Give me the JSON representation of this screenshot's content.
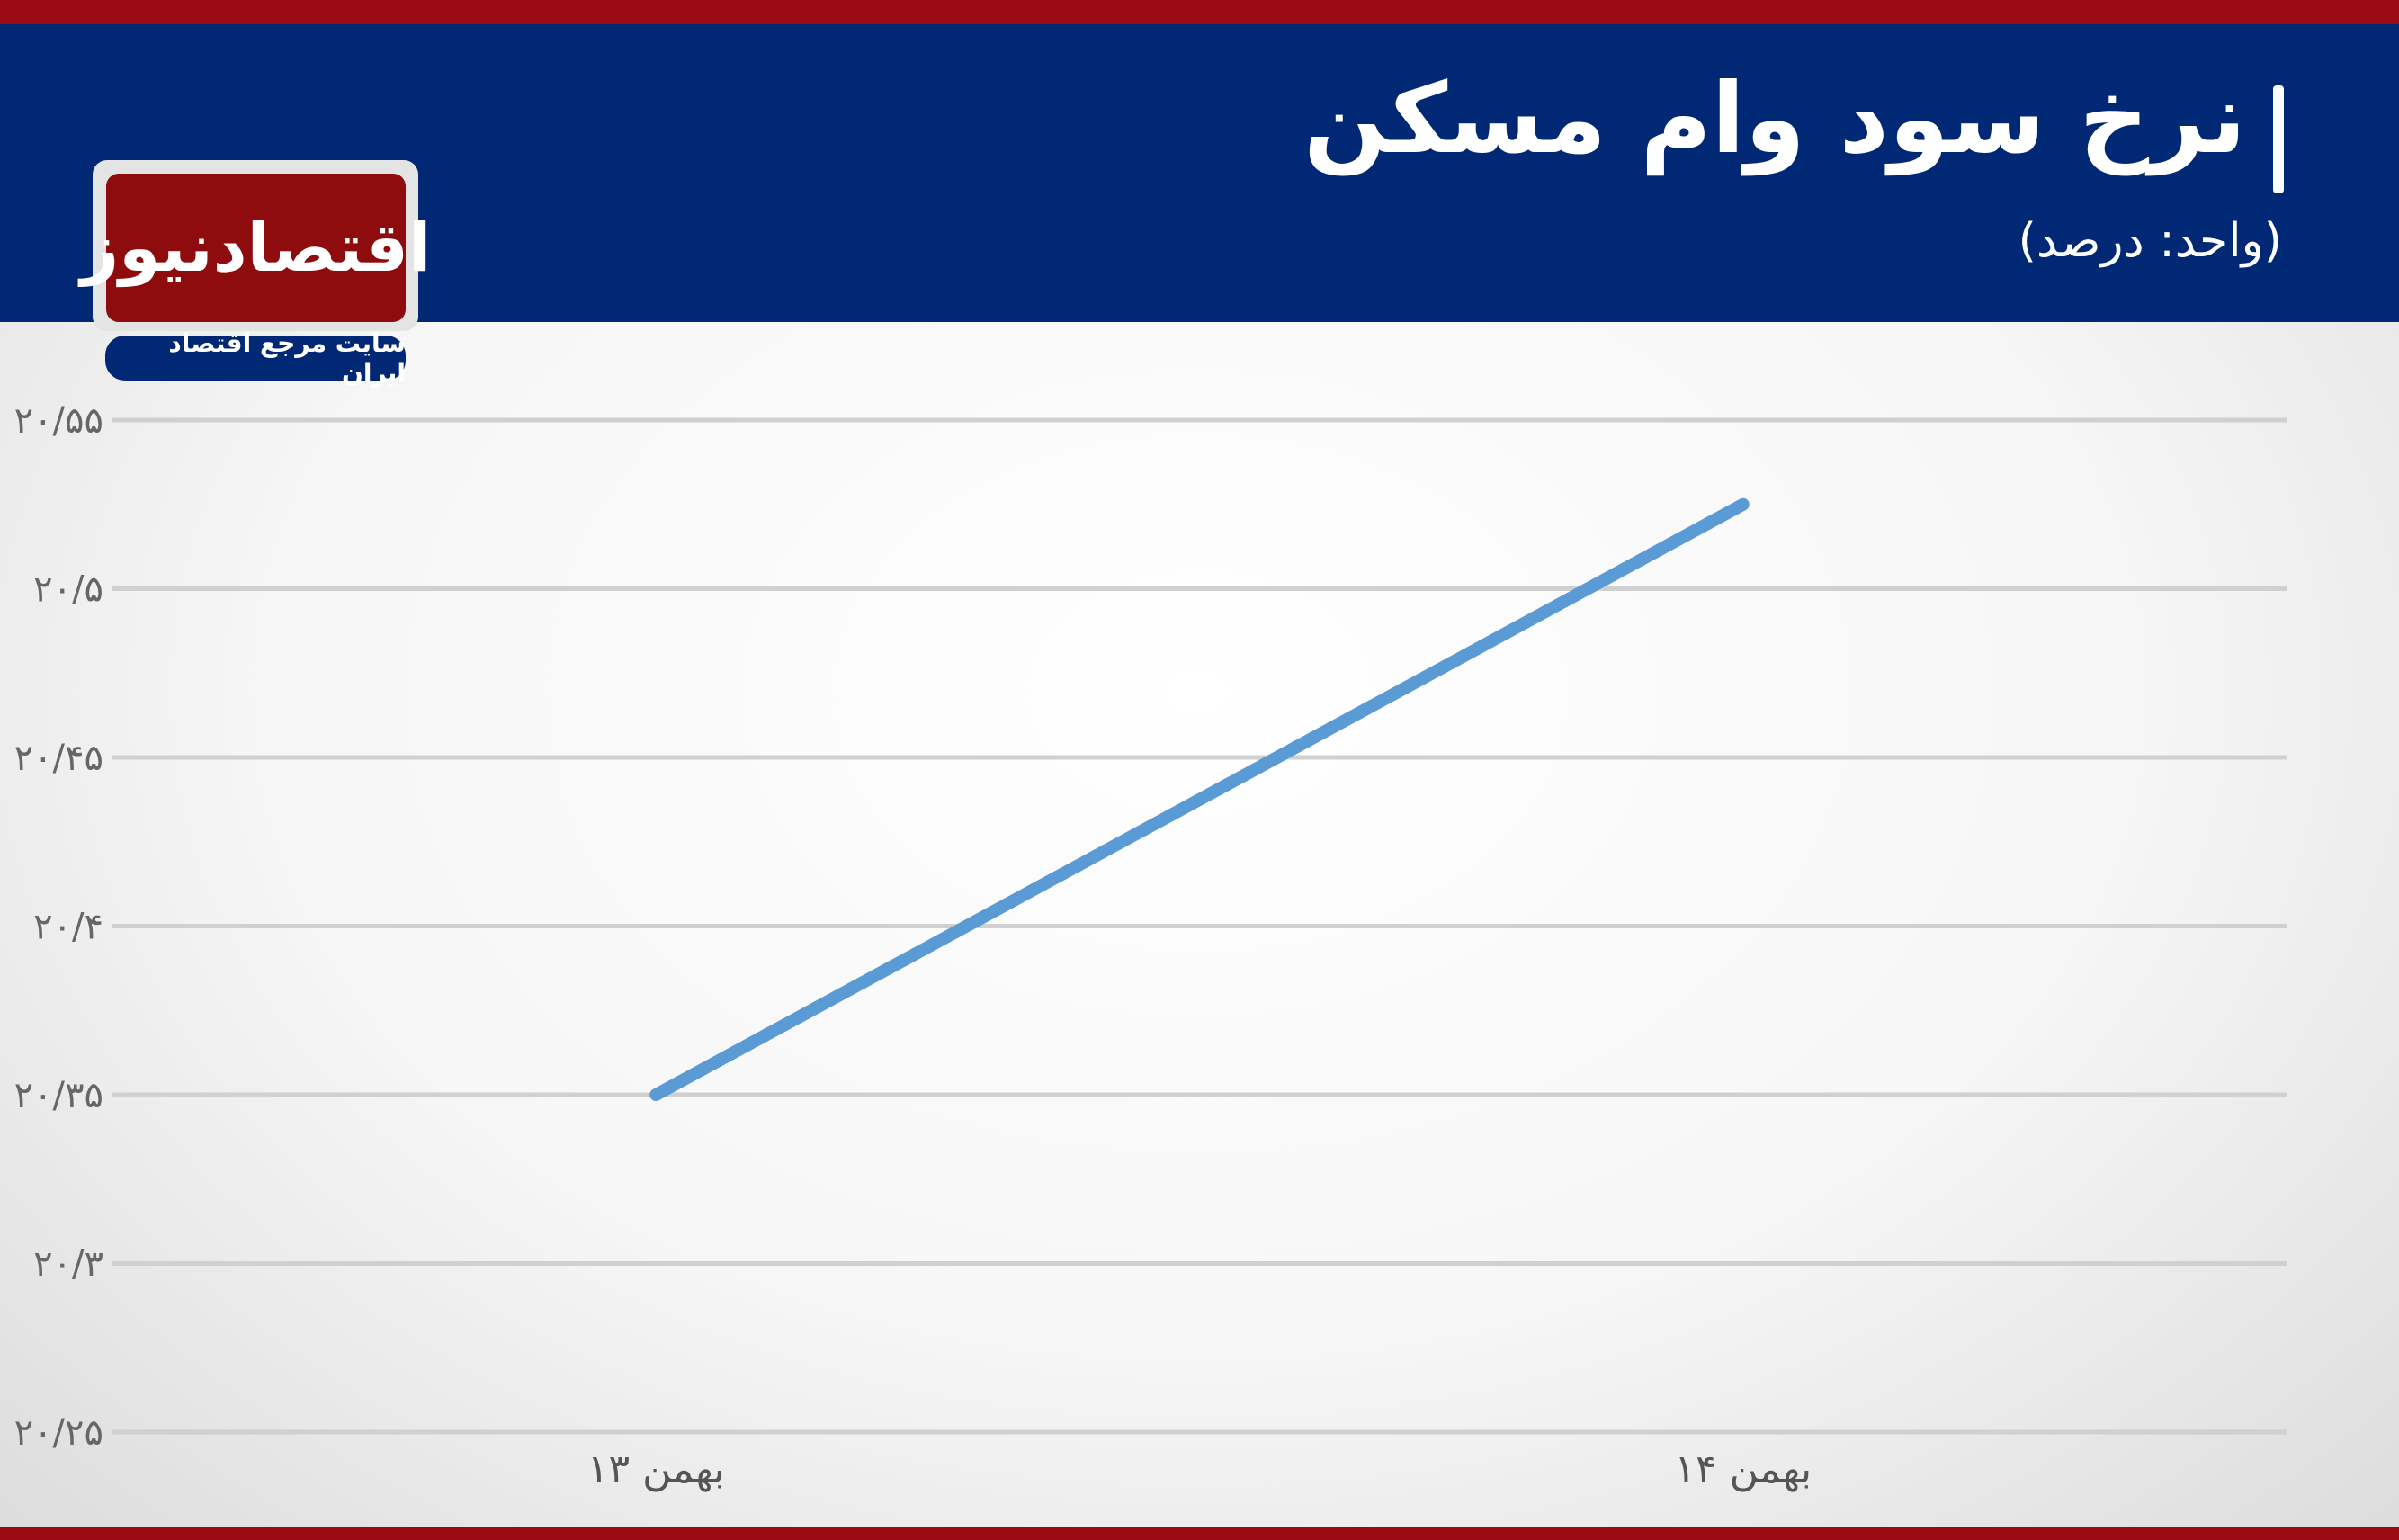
{
  "header": {
    "title": "نرخ سود وام مسکن",
    "subtitle": "(واحد: درصد)"
  },
  "logo": {
    "name": "اقتصادنیوز",
    "tagline": "سایت مرجع اقتصاد ایران"
  },
  "colors": {
    "header_bg": "#002875",
    "accent_red": "#9b0a12",
    "line": "#5b9bd5",
    "grid": "#d0d0d0"
  },
  "chart_data": {
    "type": "line",
    "categories": [
      "۱۳ بهمن",
      "۱۴ بهمن"
    ],
    "series": [
      {
        "values": [
          20.35,
          20.525
        ]
      }
    ],
    "yticks": [
      20.25,
      20.3,
      20.35,
      20.4,
      20.45,
      20.5,
      20.55
    ],
    "ytick_labels": [
      "۲۰/۲۵",
      "۲۰/۳",
      "۲۰/۳۵",
      "۲۰/۴",
      "۲۰/۴۵",
      "۲۰/۵",
      "۲۰/۵۵"
    ],
    "ylim": [
      20.25,
      20.55
    ],
    "grid": true,
    "legend": "none"
  }
}
